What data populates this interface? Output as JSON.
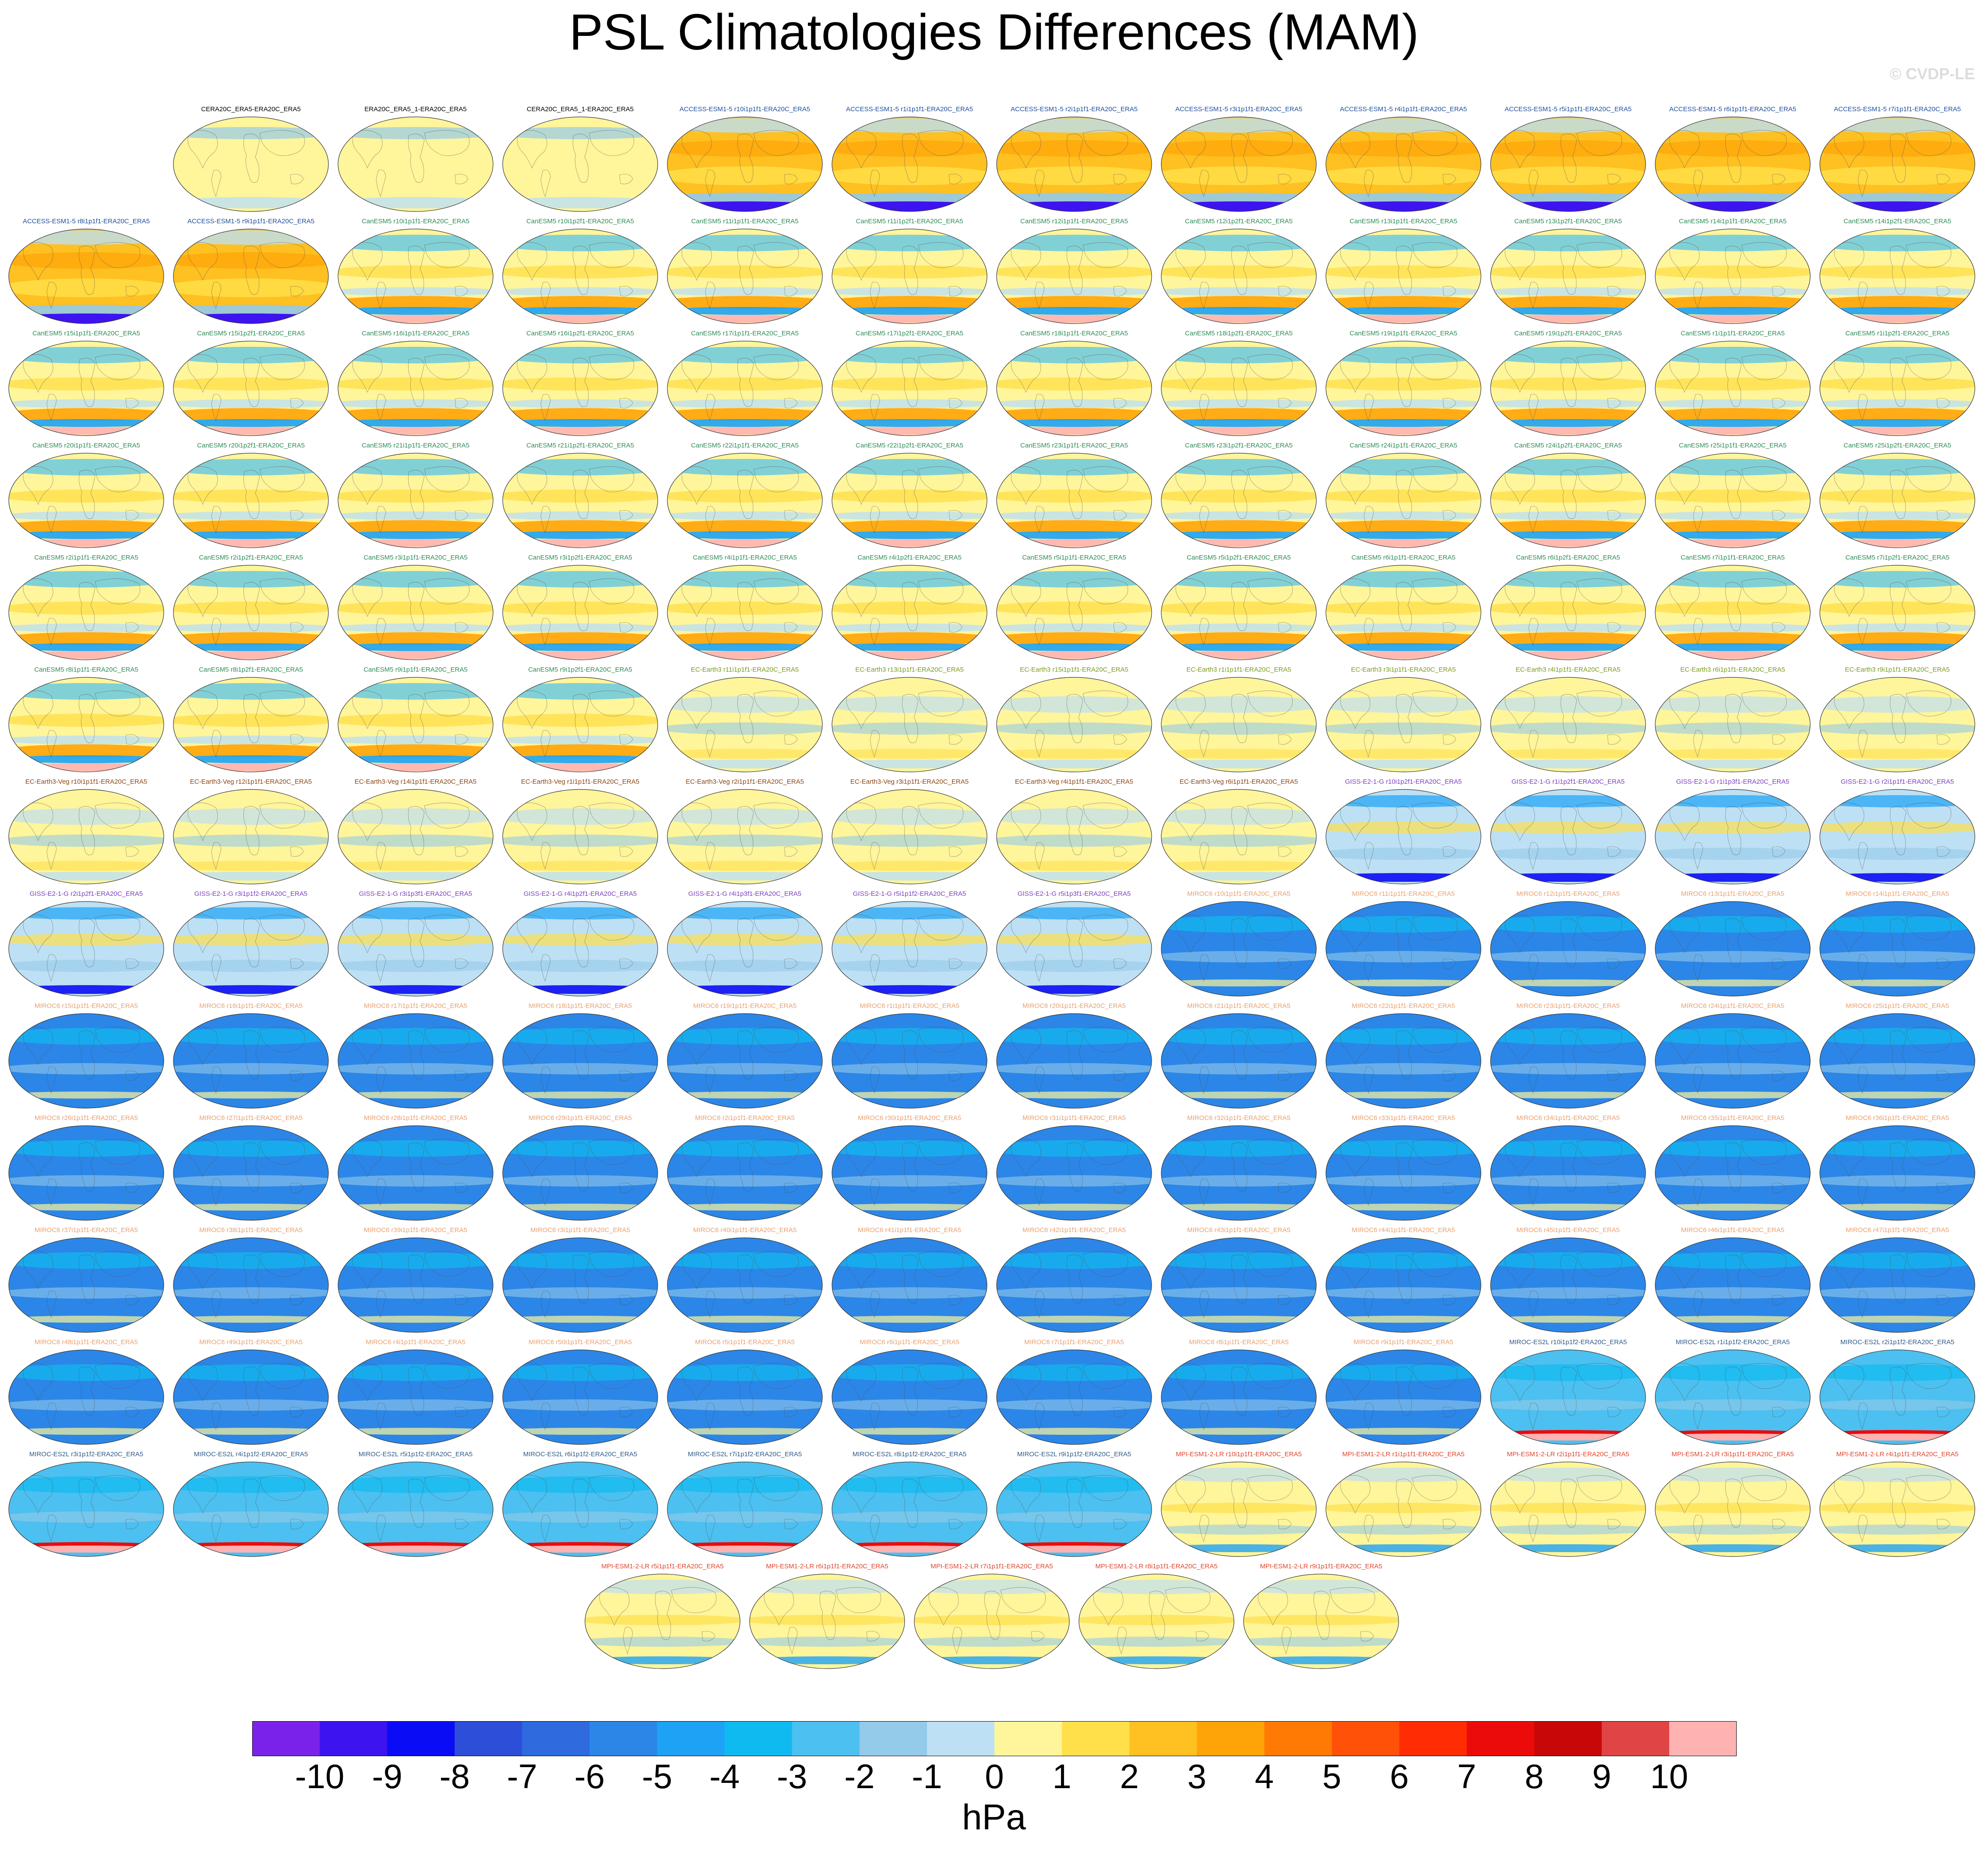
{
  "title": "PSL Climatologies Differences (MAM)",
  "watermark": "© CVDP-LE",
  "units": "hPa",
  "chart_data": {
    "type": "heatmap",
    "title": "PSL Climatologies Differences (MAM)",
    "units": "hPa",
    "colorbar": {
      "ticks": [
        "-10",
        "-9",
        "-8",
        "-7",
        "-6",
        "-5",
        "-4",
        "-3",
        "-2",
        "-1",
        "0",
        "1",
        "2",
        "3",
        "4",
        "5",
        "6",
        "7",
        "8",
        "9",
        "10"
      ],
      "colors": [
        "#7b22ea",
        "#3d14f0",
        "#0a0cf5",
        "#2d4ed9",
        "#2f6adf",
        "#2b86e8",
        "#1da2f5",
        "#0fbaf0",
        "#4cc0f0",
        "#94caea",
        "#bde0f4",
        "#fff59a",
        "#ffe04a",
        "#ffc021",
        "#ffa408",
        "#ff7a04",
        "#ff5208",
        "#ff2c04",
        "#ec0b0b",
        "#c80808",
        "#e04444",
        "#ffb2b2"
      ]
    },
    "rows": [
      [
        {
          "label": "CERA20C_ERA5-ERA20C_ERA5",
          "model": "obs"
        },
        {
          "label": "ERA20C_ERA5_1-ERA20C_ERA5",
          "model": "obs"
        },
        {
          "label": "CERA20C_ERA5_1-ERA20C_ERA5",
          "model": "obs"
        },
        {
          "label": "ACCESS-ESM1-5 r10i1p1f1-ERA20C_ERA5",
          "model": "ACCESS"
        },
        {
          "label": "ACCESS-ESM1-5 r1i1p1f1-ERA20C_ERA5",
          "model": "ACCESS"
        },
        {
          "label": "ACCESS-ESM1-5 r2i1p1f1-ERA20C_ERA5",
          "model": "ACCESS"
        },
        {
          "label": "ACCESS-ESM1-5 r3i1p1f1-ERA20C_ERA5",
          "model": "ACCESS"
        },
        {
          "label": "ACCESS-ESM1-5 r4i1p1f1-ERA20C_ERA5",
          "model": "ACCESS"
        },
        {
          "label": "ACCESS-ESM1-5 r5i1p1f1-ERA20C_ERA5",
          "model": "ACCESS"
        },
        {
          "label": "ACCESS-ESM1-5 r6i1p1f1-ERA20C_ERA5",
          "model": "ACCESS"
        },
        {
          "label": "ACCESS-ESM1-5 r7i1p1f1-ERA20C_ERA5",
          "model": "ACCESS"
        }
      ],
      [
        {
          "label": "ACCESS-ESM1-5 r8i1p1f1-ERA20C_ERA5",
          "model": "ACCESS"
        },
        {
          "label": "ACCESS-ESM1-5 r9i1p1f1-ERA20C_ERA5",
          "model": "ACCESS"
        },
        {
          "label": "CanESM5 r10i1p1f1-ERA20C_ERA5",
          "model": "CanESM5"
        },
        {
          "label": "CanESM5 r10i1p2f1-ERA20C_ERA5",
          "model": "CanESM5"
        },
        {
          "label": "CanESM5 r11i1p1f1-ERA20C_ERA5",
          "model": "CanESM5"
        },
        {
          "label": "CanESM5 r11i1p2f1-ERA20C_ERA5",
          "model": "CanESM5"
        },
        {
          "label": "CanESM5 r12i1p1f1-ERA20C_ERA5",
          "model": "CanESM5"
        },
        {
          "label": "CanESM5 r12i1p2f1-ERA20C_ERA5",
          "model": "CanESM5"
        },
        {
          "label": "CanESM5 r13i1p1f1-ERA20C_ERA5",
          "model": "CanESM5"
        },
        {
          "label": "CanESM5 r13i1p2f1-ERA20C_ERA5",
          "model": "CanESM5"
        },
        {
          "label": "CanESM5 r14i1p1f1-ERA20C_ERA5",
          "model": "CanESM5"
        },
        {
          "label": "CanESM5 r14i1p2f1-ERA20C_ERA5",
          "model": "CanESM5"
        }
      ],
      [
        {
          "label": "CanESM5 r15i1p1f1-ERA20C_ERA5",
          "model": "CanESM5"
        },
        {
          "label": "CanESM5 r15i1p2f1-ERA20C_ERA5",
          "model": "CanESM5"
        },
        {
          "label": "CanESM5 r16i1p1f1-ERA20C_ERA5",
          "model": "CanESM5"
        },
        {
          "label": "CanESM5 r16i1p2f1-ERA20C_ERA5",
          "model": "CanESM5"
        },
        {
          "label": "CanESM5 r17i1p1f1-ERA20C_ERA5",
          "model": "CanESM5"
        },
        {
          "label": "CanESM5 r17i1p2f1-ERA20C_ERA5",
          "model": "CanESM5"
        },
        {
          "label": "CanESM5 r18i1p1f1-ERA20C_ERA5",
          "model": "CanESM5"
        },
        {
          "label": "CanESM5 r18i1p2f1-ERA20C_ERA5",
          "model": "CanESM5"
        },
        {
          "label": "CanESM5 r19i1p1f1-ERA20C_ERA5",
          "model": "CanESM5"
        },
        {
          "label": "CanESM5 r19i1p2f1-ERA20C_ERA5",
          "model": "CanESM5"
        },
        {
          "label": "CanESM5 r1i1p1f1-ERA20C_ERA5",
          "model": "CanESM5"
        },
        {
          "label": "CanESM5 r1i1p2f1-ERA20C_ERA5",
          "model": "CanESM5"
        }
      ],
      [
        {
          "label": "CanESM5 r20i1p1f1-ERA20C_ERA5",
          "model": "CanESM5"
        },
        {
          "label": "CanESM5 r20i1p2f1-ERA20C_ERA5",
          "model": "CanESM5"
        },
        {
          "label": "CanESM5 r21i1p1f1-ERA20C_ERA5",
          "model": "CanESM5"
        },
        {
          "label": "CanESM5 r21i1p2f1-ERA20C_ERA5",
          "model": "CanESM5"
        },
        {
          "label": "CanESM5 r22i1p1f1-ERA20C_ERA5",
          "model": "CanESM5"
        },
        {
          "label": "CanESM5 r22i1p2f1-ERA20C_ERA5",
          "model": "CanESM5"
        },
        {
          "label": "CanESM5 r23i1p1f1-ERA20C_ERA5",
          "model": "CanESM5"
        },
        {
          "label": "CanESM5 r23i1p2f1-ERA20C_ERA5",
          "model": "CanESM5"
        },
        {
          "label": "CanESM5 r24i1p1f1-ERA20C_ERA5",
          "model": "CanESM5"
        },
        {
          "label": "CanESM5 r24i1p2f1-ERA20C_ERA5",
          "model": "CanESM5"
        },
        {
          "label": "CanESM5 r25i1p1f1-ERA20C_ERA5",
          "model": "CanESM5"
        },
        {
          "label": "CanESM5 r25i1p2f1-ERA20C_ERA5",
          "model": "CanESM5"
        }
      ],
      [
        {
          "label": "CanESM5 r2i1p1f1-ERA20C_ERA5",
          "model": "CanESM5"
        },
        {
          "label": "CanESM5 r2i1p2f1-ERA20C_ERA5",
          "model": "CanESM5"
        },
        {
          "label": "CanESM5 r3i1p1f1-ERA20C_ERA5",
          "model": "CanESM5"
        },
        {
          "label": "CanESM5 r3i1p2f1-ERA20C_ERA5",
          "model": "CanESM5"
        },
        {
          "label": "CanESM5 r4i1p1f1-ERA20C_ERA5",
          "model": "CanESM5"
        },
        {
          "label": "CanESM5 r4i1p2f1-ERA20C_ERA5",
          "model": "CanESM5"
        },
        {
          "label": "CanESM5 r5i1p1f1-ERA20C_ERA5",
          "model": "CanESM5"
        },
        {
          "label": "CanESM5 r5i1p2f1-ERA20C_ERA5",
          "model": "CanESM5"
        },
        {
          "label": "CanESM5 r6i1p1f1-ERA20C_ERA5",
          "model": "CanESM5"
        },
        {
          "label": "CanESM5 r6i1p2f1-ERA20C_ERA5",
          "model": "CanESM5"
        },
        {
          "label": "CanESM5 r7i1p1f1-ERA20C_ERA5",
          "model": "CanESM5"
        },
        {
          "label": "CanESM5 r7i1p2f1-ERA20C_ERA5",
          "model": "CanESM5"
        }
      ],
      [
        {
          "label": "CanESM5 r8i1p1f1-ERA20C_ERA5",
          "model": "CanESM5"
        },
        {
          "label": "CanESM5 r8i1p2f1-ERA20C_ERA5",
          "model": "CanESM5"
        },
        {
          "label": "CanESM5 r9i1p1f1-ERA20C_ERA5",
          "model": "CanESM5"
        },
        {
          "label": "CanESM5 r9i1p2f1-ERA20C_ERA5",
          "model": "CanESM5"
        },
        {
          "label": "EC-Earth3 r11i1p1f1-ERA20C_ERA5",
          "model": "EC-Earth3"
        },
        {
          "label": "EC-Earth3 r13i1p1f1-ERA20C_ERA5",
          "model": "EC-Earth3"
        },
        {
          "label": "EC-Earth3 r15i1p1f1-ERA20C_ERA5",
          "model": "EC-Earth3"
        },
        {
          "label": "EC-Earth3 r1i1p1f1-ERA20C_ERA5",
          "model": "EC-Earth3"
        },
        {
          "label": "EC-Earth3 r3i1p1f1-ERA20C_ERA5",
          "model": "EC-Earth3"
        },
        {
          "label": "EC-Earth3 r4i1p1f1-ERA20C_ERA5",
          "model": "EC-Earth3"
        },
        {
          "label": "EC-Earth3 r6i1p1f1-ERA20C_ERA5",
          "model": "EC-Earth3"
        },
        {
          "label": "EC-Earth3 r9i1p1f1-ERA20C_ERA5",
          "model": "EC-Earth3"
        }
      ],
      [
        {
          "label": "EC-Earth3-Veg r10i1p1f1-ERA20C_ERA5",
          "model": "EC-Earth3-Veg"
        },
        {
          "label": "EC-Earth3-Veg r12i1p1f1-ERA20C_ERA5",
          "model": "EC-Earth3-Veg"
        },
        {
          "label": "EC-Earth3-Veg r14i1p1f1-ERA20C_ERA5",
          "model": "EC-Earth3-Veg"
        },
        {
          "label": "EC-Earth3-Veg r1i1p1f1-ERA20C_ERA5",
          "model": "EC-Earth3-Veg"
        },
        {
          "label": "EC-Earth3-Veg r2i1p1f1-ERA20C_ERA5",
          "model": "EC-Earth3-Veg"
        },
        {
          "label": "EC-Earth3-Veg r3i1p1f1-ERA20C_ERA5",
          "model": "EC-Earth3-Veg"
        },
        {
          "label": "EC-Earth3-Veg r4i1p1f1-ERA20C_ERA5",
          "model": "EC-Earth3-Veg"
        },
        {
          "label": "EC-Earth3-Veg r6i1p1f1-ERA20C_ERA5",
          "model": "EC-Earth3-Veg"
        },
        {
          "label": "GISS-E2-1-G r10i1p2f1-ERA20C_ERA5",
          "model": "GISS"
        },
        {
          "label": "GISS-E2-1-G r1i1p2f1-ERA20C_ERA5",
          "model": "GISS"
        },
        {
          "label": "GISS-E2-1-G r1i1p3f1-ERA20C_ERA5",
          "model": "GISS"
        },
        {
          "label": "GISS-E2-1-G r2i1p1f1-ERA20C_ERA5",
          "model": "GISS"
        }
      ],
      [
        {
          "label": "GISS-E2-1-G r2i1p2f1-ERA20C_ERA5",
          "model": "GISS"
        },
        {
          "label": "GISS-E2-1-G r3i1p1f2-ERA20C_ERA5",
          "model": "GISS"
        },
        {
          "label": "GISS-E2-1-G r3i1p3f1-ERA20C_ERA5",
          "model": "GISS"
        },
        {
          "label": "GISS-E2-1-G r4i1p2f1-ERA20C_ERA5",
          "model": "GISS"
        },
        {
          "label": "GISS-E2-1-G r4i1p3f1-ERA20C_ERA5",
          "model": "GISS"
        },
        {
          "label": "GISS-E2-1-G r5i1p1f2-ERA20C_ERA5",
          "model": "GISS"
        },
        {
          "label": "GISS-E2-1-G r5i1p3f1-ERA20C_ERA5",
          "model": "GISS"
        },
        {
          "label": "MIROC6 r10i1p1f1-ERA20C_ERA5",
          "model": "MIROC6"
        },
        {
          "label": "MIROC6 r11i1p1f1-ERA20C_ERA5",
          "model": "MIROC6"
        },
        {
          "label": "MIROC6 r12i1p1f1-ERA20C_ERA5",
          "model": "MIROC6"
        },
        {
          "label": "MIROC6 r13i1p1f1-ERA20C_ERA5",
          "model": "MIROC6"
        },
        {
          "label": "MIROC6 r14i1p1f1-ERA20C_ERA5",
          "model": "MIROC6"
        }
      ],
      [
        {
          "label": "MIROC6 r15i1p1f1-ERA20C_ERA5",
          "model": "MIROC6"
        },
        {
          "label": "MIROC6 r16i1p1f1-ERA20C_ERA5",
          "model": "MIROC6"
        },
        {
          "label": "MIROC6 r17i1p1f1-ERA20C_ERA5",
          "model": "MIROC6"
        },
        {
          "label": "MIROC6 r18i1p1f1-ERA20C_ERA5",
          "model": "MIROC6"
        },
        {
          "label": "MIROC6 r19i1p1f1-ERA20C_ERA5",
          "model": "MIROC6"
        },
        {
          "label": "MIROC6 r1i1p1f1-ERA20C_ERA5",
          "model": "MIROC6"
        },
        {
          "label": "MIROC6 r20i1p1f1-ERA20C_ERA5",
          "model": "MIROC6"
        },
        {
          "label": "MIROC6 r21i1p1f1-ERA20C_ERA5",
          "model": "MIROC6"
        },
        {
          "label": "MIROC6 r22i1p1f1-ERA20C_ERA5",
          "model": "MIROC6"
        },
        {
          "label": "MIROC6 r23i1p1f1-ERA20C_ERA5",
          "model": "MIROC6"
        },
        {
          "label": "MIROC6 r24i1p1f1-ERA20C_ERA5",
          "model": "MIROC6"
        },
        {
          "label": "MIROC6 r25i1p1f1-ERA20C_ERA5",
          "model": "MIROC6"
        }
      ],
      [
        {
          "label": "MIROC6 r26i1p1f1-ERA20C_ERA5",
          "model": "MIROC6"
        },
        {
          "label": "MIROC6 r27i1p1f1-ERA20C_ERA5",
          "model": "MIROC6"
        },
        {
          "label": "MIROC6 r28i1p1f1-ERA20C_ERA5",
          "model": "MIROC6"
        },
        {
          "label": "MIROC6 r29i1p1f1-ERA20C_ERA5",
          "model": "MIROC6"
        },
        {
          "label": "MIROC6 r2i1p1f1-ERA20C_ERA5",
          "model": "MIROC6"
        },
        {
          "label": "MIROC6 r30i1p1f1-ERA20C_ERA5",
          "model": "MIROC6"
        },
        {
          "label": "MIROC6 r31i1p1f1-ERA20C_ERA5",
          "model": "MIROC6"
        },
        {
          "label": "MIROC6 r32i1p1f1-ERA20C_ERA5",
          "model": "MIROC6"
        },
        {
          "label": "MIROC6 r33i1p1f1-ERA20C_ERA5",
          "model": "MIROC6"
        },
        {
          "label": "MIROC6 r34i1p1f1-ERA20C_ERA5",
          "model": "MIROC6"
        },
        {
          "label": "MIROC6 r35i1p1f1-ERA20C_ERA5",
          "model": "MIROC6"
        },
        {
          "label": "MIROC6 r36i1p1f1-ERA20C_ERA5",
          "model": "MIROC6"
        }
      ],
      [
        {
          "label": "MIROC6 r37i1p1f1-ERA20C_ERA5",
          "model": "MIROC6"
        },
        {
          "label": "MIROC6 r38i1p1f1-ERA20C_ERA5",
          "model": "MIROC6"
        },
        {
          "label": "MIROC6 r39i1p1f1-ERA20C_ERA5",
          "model": "MIROC6"
        },
        {
          "label": "MIROC6 r3i1p1f1-ERA20C_ERA5",
          "model": "MIROC6"
        },
        {
          "label": "MIROC6 r40i1p1f1-ERA20C_ERA5",
          "model": "MIROC6"
        },
        {
          "label": "MIROC6 r41i1p1f1-ERA20C_ERA5",
          "model": "MIROC6"
        },
        {
          "label": "MIROC6 r42i1p1f1-ERA20C_ERA5",
          "model": "MIROC6"
        },
        {
          "label": "MIROC6 r43i1p1f1-ERA20C_ERA5",
          "model": "MIROC6"
        },
        {
          "label": "MIROC6 r44i1p1f1-ERA20C_ERA5",
          "model": "MIROC6"
        },
        {
          "label": "MIROC6 r45i1p1f1-ERA20C_ERA5",
          "model": "MIROC6"
        },
        {
          "label": "MIROC6 r46i1p1f1-ERA20C_ERA5",
          "model": "MIROC6"
        },
        {
          "label": "MIROC6 r47i1p1f1-ERA20C_ERA5",
          "model": "MIROC6"
        }
      ],
      [
        {
          "label": "MIROC6 r48i1p1f1-ERA20C_ERA5",
          "model": "MIROC6"
        },
        {
          "label": "MIROC6 r49i1p1f1-ERA20C_ERA5",
          "model": "MIROC6"
        },
        {
          "label": "MIROC6 r4i1p1f1-ERA20C_ERA5",
          "model": "MIROC6"
        },
        {
          "label": "MIROC6 r50i1p1f1-ERA20C_ERA5",
          "model": "MIROC6"
        },
        {
          "label": "MIROC6 r5i1p1f1-ERA20C_ERA5",
          "model": "MIROC6"
        },
        {
          "label": "MIROC6 r6i1p1f1-ERA20C_ERA5",
          "model": "MIROC6"
        },
        {
          "label": "MIROC6 r7i1p1f1-ERA20C_ERA5",
          "model": "MIROC6"
        },
        {
          "label": "MIROC6 r8i1p1f1-ERA20C_ERA5",
          "model": "MIROC6"
        },
        {
          "label": "MIROC6 r9i1p1f1-ERA20C_ERA5",
          "model": "MIROC6"
        },
        {
          "label": "MIROC-ES2L r10i1p1f2-ERA20C_ERA5",
          "model": "MIROC-ES2L"
        },
        {
          "label": "MIROC-ES2L r1i1p1f2-ERA20C_ERA5",
          "model": "MIROC-ES2L"
        },
        {
          "label": "MIROC-ES2L r2i1p1f2-ERA20C_ERA5",
          "model": "MIROC-ES2L"
        }
      ],
      [
        {
          "label": "MIROC-ES2L r3i1p1f2-ERA20C_ERA5",
          "model": "MIROC-ES2L"
        },
        {
          "label": "MIROC-ES2L r4i1p1f2-ERA20C_ERA5",
          "model": "MIROC-ES2L"
        },
        {
          "label": "MIROC-ES2L r5i1p1f2-ERA20C_ERA5",
          "model": "MIROC-ES2L"
        },
        {
          "label": "MIROC-ES2L r6i1p1f2-ERA20C_ERA5",
          "model": "MIROC-ES2L"
        },
        {
          "label": "MIROC-ES2L r7i1p1f2-ERA20C_ERA5",
          "model": "MIROC-ES2L"
        },
        {
          "label": "MIROC-ES2L r8i1p1f2-ERA20C_ERA5",
          "model": "MIROC-ES2L"
        },
        {
          "label": "MIROC-ES2L r9i1p1f2-ERA20C_ERA5",
          "model": "MIROC-ES2L"
        },
        {
          "label": "MPI-ESM1-2-LR r10i1p1f1-ERA20C_ERA5",
          "model": "MPI"
        },
        {
          "label": "MPI-ESM1-2-LR r1i1p1f1-ERA20C_ERA5",
          "model": "MPI"
        },
        {
          "label": "MPI-ESM1-2-LR r2i1p1f1-ERA20C_ERA5",
          "model": "MPI"
        },
        {
          "label": "MPI-ESM1-2-LR r3i1p1f1-ERA20C_ERA5",
          "model": "MPI"
        },
        {
          "label": "MPI-ESM1-2-LR r4i1p1f1-ERA20C_ERA5",
          "model": "MPI"
        }
      ],
      [
        {
          "label": "MPI-ESM1-2-LR r5i1p1f1-ERA20C_ERA5",
          "model": "MPI"
        },
        {
          "label": "MPI-ESM1-2-LR r6i1p1f1-ERA20C_ERA5",
          "model": "MPI"
        },
        {
          "label": "MPI-ESM1-2-LR r7i1p1f1-ERA20C_ERA5",
          "model": "MPI"
        },
        {
          "label": "MPI-ESM1-2-LR r8i1p1f1-ERA20C_ERA5",
          "model": "MPI"
        },
        {
          "label": "MPI-ESM1-2-LR r9i1p1f1-ERA20C_ERA5",
          "model": "MPI"
        }
      ]
    ],
    "model_colors": {
      "obs": "#000000",
      "ACCESS": "#1f4e9a",
      "CanESM5": "#2e8b57",
      "EC-Earth3": "#7a9a1a",
      "EC-Earth3-Veg": "#8b4513",
      "GISS": "#7b3fbf",
      "MIROC6": "#e8a070",
      "MIROC-ES2L": "#2e5a8a",
      "MPI": "#e0442c"
    },
    "model_base_colors": {
      "obs": "#fff59a",
      "ACCESS": "#ffc021",
      "CanESM5": "#fff59a",
      "EC-Earth3": "#fff59a",
      "EC-Earth3-Veg": "#fff59a",
      "GISS": "#bde0f4",
      "MIROC6": "#2b86e8",
      "MIROC-ES2L": "#4cc0f0",
      "MPI": "#fff59a"
    }
  }
}
